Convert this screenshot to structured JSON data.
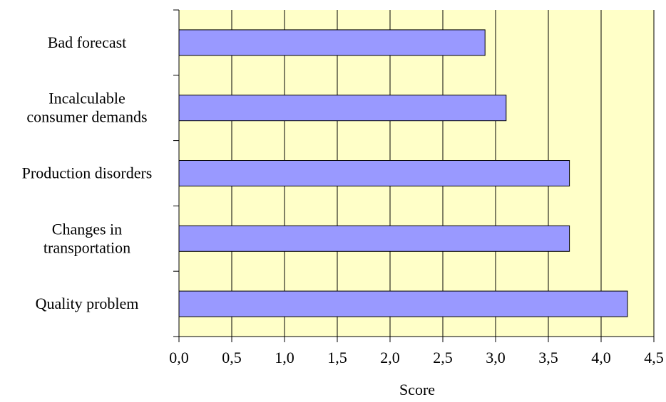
{
  "chart_data": {
    "type": "bar",
    "orientation": "horizontal",
    "categories": [
      [
        "Bad forecast"
      ],
      [
        "Incalculable",
        "consumer demands"
      ],
      [
        "Production disorders"
      ],
      [
        "Changes in",
        "transportation"
      ],
      [
        "Quality problem"
      ]
    ],
    "values": [
      2.9,
      3.1,
      3.7,
      3.7,
      4.25
    ],
    "xlabel": "Score",
    "ylabel": "",
    "xlim": [
      0,
      4.5
    ],
    "xticks": [
      0,
      0.5,
      1,
      1.5,
      2,
      2.5,
      3,
      3.5,
      4,
      4.5
    ],
    "xtick_labels": [
      "0,0",
      "0,5",
      "1,0",
      "1,5",
      "2,0",
      "2,5",
      "3,0",
      "3,5",
      "4,0",
      "4,5"
    ],
    "grid": "vertical",
    "colors": {
      "plot_background": "#ffffc8",
      "bar_fill": "#9999ff",
      "bar_stroke": "#000000",
      "grid": "#000000"
    }
  }
}
